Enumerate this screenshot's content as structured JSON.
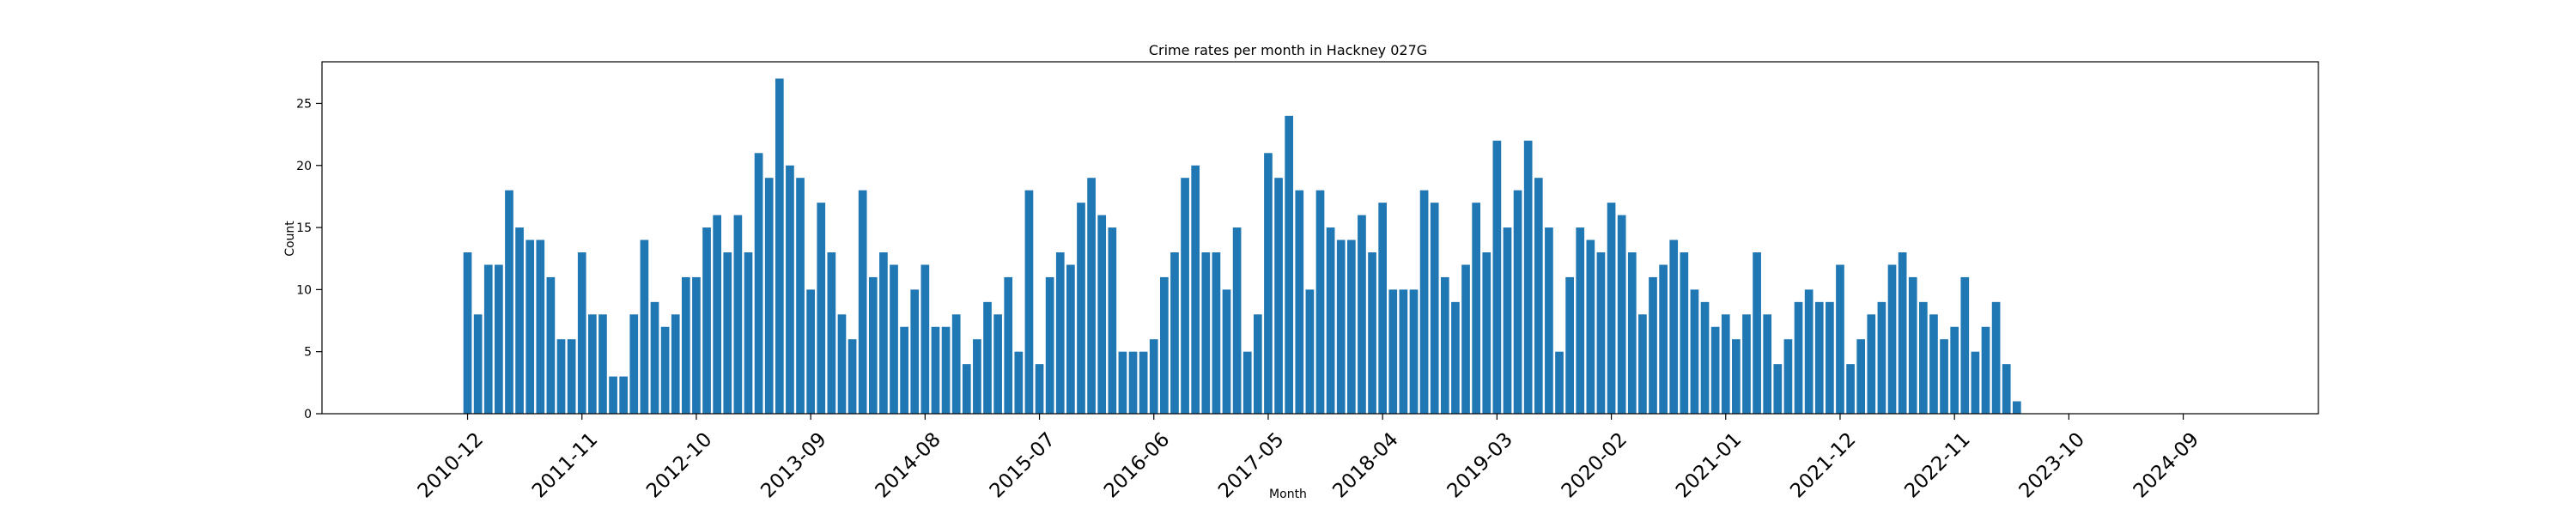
{
  "chart_data": {
    "type": "bar",
    "title": "Crime rates per month in Hackney 027G",
    "xlabel": "Month",
    "ylabel": "Count",
    "x_start": "2010-12",
    "categories": [
      "2010-12",
      "2011-01",
      "2011-02",
      "2011-03",
      "2011-04",
      "2011-05",
      "2011-06",
      "2011-07",
      "2011-08",
      "2011-09",
      "2011-10",
      "2011-11",
      "2011-12",
      "2012-01",
      "2012-02",
      "2012-03",
      "2012-04",
      "2012-05",
      "2012-06",
      "2012-07",
      "2012-08",
      "2012-09",
      "2012-10",
      "2012-11",
      "2012-12",
      "2013-01",
      "2013-02",
      "2013-03",
      "2013-04",
      "2013-05",
      "2013-06",
      "2013-07",
      "2013-08",
      "2013-09",
      "2013-10",
      "2013-11",
      "2013-12",
      "2014-01",
      "2014-02",
      "2014-03",
      "2014-04",
      "2014-05",
      "2014-06",
      "2014-07",
      "2014-08",
      "2014-09",
      "2014-10",
      "2014-11",
      "2014-12",
      "2015-01",
      "2015-02",
      "2015-03",
      "2015-04",
      "2015-05",
      "2015-06",
      "2015-07",
      "2015-08",
      "2015-09",
      "2015-10",
      "2015-11",
      "2015-12",
      "2016-01",
      "2016-02",
      "2016-03",
      "2016-04",
      "2016-05",
      "2016-06",
      "2016-07",
      "2016-08",
      "2016-09",
      "2016-10",
      "2016-11",
      "2016-12",
      "2017-01",
      "2017-02",
      "2017-03",
      "2017-04",
      "2017-05",
      "2017-06",
      "2017-07",
      "2017-08",
      "2017-09",
      "2017-10",
      "2017-11",
      "2017-12",
      "2018-01",
      "2018-02",
      "2018-03",
      "2018-04",
      "2018-05",
      "2018-06",
      "2018-07",
      "2018-08",
      "2018-09",
      "2018-10",
      "2018-11",
      "2018-12",
      "2019-01",
      "2019-02",
      "2019-03",
      "2019-04",
      "2019-05",
      "2019-06",
      "2019-07",
      "2019-08",
      "2019-09",
      "2019-10",
      "2019-11",
      "2019-12",
      "2020-01",
      "2020-02",
      "2020-03",
      "2020-04",
      "2020-05",
      "2020-06",
      "2020-07",
      "2020-08",
      "2020-09",
      "2020-10",
      "2020-11",
      "2020-12",
      "2021-01",
      "2021-02",
      "2021-03",
      "2021-04",
      "2021-05",
      "2021-06",
      "2021-07",
      "2021-08",
      "2021-09",
      "2021-10",
      "2021-11",
      "2021-12",
      "2022-01",
      "2022-02",
      "2022-03",
      "2022-04",
      "2022-05",
      "2022-06",
      "2022-07",
      "2022-08",
      "2022-09",
      "2022-10",
      "2022-11",
      "2022-12",
      "2023-01",
      "2023-02",
      "2023-03",
      "2023-04",
      "2023-05"
    ],
    "values": [
      13,
      8,
      12,
      12,
      18,
      15,
      14,
      14,
      11,
      6,
      6,
      13,
      8,
      8,
      3,
      3,
      8,
      14,
      9,
      7,
      8,
      11,
      11,
      15,
      16,
      13,
      16,
      13,
      21,
      19,
      27,
      20,
      19,
      10,
      17,
      13,
      8,
      6,
      18,
      11,
      13,
      12,
      7,
      10,
      12,
      7,
      7,
      8,
      4,
      6,
      9,
      8,
      11,
      5,
      18,
      4,
      11,
      13,
      12,
      17,
      19,
      16,
      15,
      5,
      5,
      5,
      6,
      11,
      13,
      19,
      20,
      13,
      13,
      10,
      15,
      5,
      8,
      21,
      19,
      24,
      18,
      10,
      18,
      15,
      14,
      14,
      16,
      13,
      17,
      10,
      10,
      10,
      18,
      17,
      11,
      9,
      12,
      17,
      13,
      22,
      15,
      18,
      22,
      19,
      15,
      5,
      11,
      15,
      14,
      13,
      17,
      16,
      13,
      8,
      11,
      12,
      14,
      13,
      10,
      9,
      7,
      8,
      6,
      8,
      13,
      8,
      4,
      6,
      9,
      10,
      9,
      9,
      12,
      4,
      6,
      8,
      9,
      12,
      13,
      11,
      9,
      8,
      6,
      7,
      11,
      5,
      7,
      9,
      4,
      1
    ],
    "xticks": [
      "2010-12",
      "2011-11",
      "2012-10",
      "2013-09",
      "2014-08",
      "2015-07",
      "2016-06",
      "2017-05",
      "2018-04",
      "2019-03",
      "2020-02",
      "2021-01",
      "2021-12",
      "2022-11",
      "2023-10",
      "2024-09"
    ],
    "yticks": [
      0,
      5,
      10,
      15,
      20,
      25
    ],
    "ylim": [
      0,
      28.35
    ],
    "xlim": [
      "2009-10",
      "2025-10"
    ],
    "bar_color": "#1f77b4",
    "grid": false,
    "legend": "none"
  }
}
